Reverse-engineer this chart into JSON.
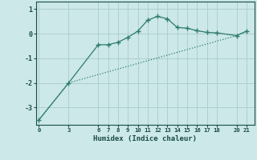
{
  "xlabel": "Humidex (Indice chaleur)",
  "background_color": "#cce8e8",
  "grid_color": "#aacccc",
  "line_color": "#2e7b6e",
  "line1_x": [
    0,
    3,
    6,
    7,
    8,
    9,
    10,
    11,
    12,
    13,
    14,
    15,
    16,
    17,
    18,
    20,
    21
  ],
  "line1_y": [
    -3.5,
    -2.0,
    -0.45,
    -0.45,
    -0.35,
    -0.15,
    0.1,
    0.55,
    0.7,
    0.6,
    0.25,
    0.22,
    0.12,
    0.05,
    0.03,
    -0.08,
    0.1
  ],
  "line2_x": [
    0,
    3,
    20,
    21
  ],
  "line2_y": [
    -3.5,
    -2.0,
    -0.08,
    0.1
  ],
  "xticks": [
    0,
    3,
    6,
    7,
    8,
    9,
    10,
    11,
    12,
    13,
    14,
    15,
    16,
    17,
    18,
    20,
    21
  ],
  "yticks": [
    -3,
    -2,
    -1,
    0,
    1
  ],
  "ylim": [
    -3.7,
    1.3
  ],
  "xlim": [
    -0.3,
    21.8
  ]
}
